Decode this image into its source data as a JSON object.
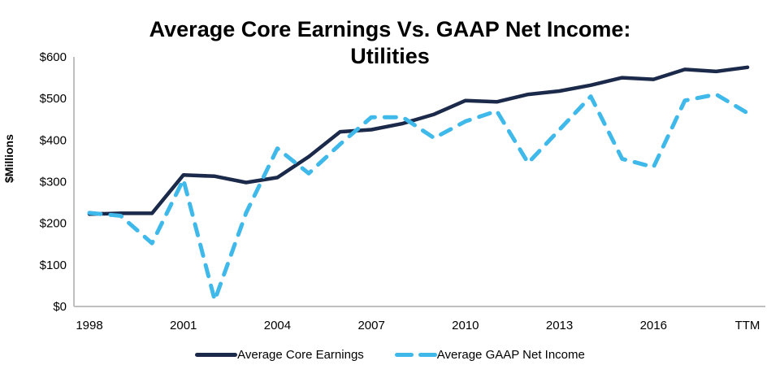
{
  "chart_data": {
    "type": "line",
    "title_line1": "Average Core Earnings Vs. GAAP Net Income:",
    "title_line2": "Utilities",
    "xlabel": "",
    "ylabel": "$Millions",
    "ylim": [
      0,
      600
    ],
    "yticks": [
      0,
      100,
      200,
      300,
      400,
      500,
      600
    ],
    "ytick_labels": [
      "$0",
      "$100",
      "$200",
      "$300",
      "$400",
      "$500",
      "$600"
    ],
    "categories": [
      "1998",
      "1999",
      "2000",
      "2001",
      "2002",
      "2003",
      "2004",
      "2005",
      "2006",
      "2007",
      "2008",
      "2009",
      "2010",
      "2011",
      "2012",
      "2013",
      "2014",
      "2015",
      "2016",
      "2017",
      "2018",
      "TTM"
    ],
    "xtick_labels": [
      "1998",
      "2001",
      "2004",
      "2007",
      "2010",
      "2013",
      "2016",
      "TTM"
    ],
    "grid": false,
    "legend_position": "bottom",
    "series": [
      {
        "name": "Average Core Earnings",
        "color": "#1b2a4a",
        "style": "solid",
        "values": [
          222,
          224,
          224,
          316,
          313,
          298,
          310,
          360,
          420,
          425,
          440,
          462,
          495,
          492,
          510,
          518,
          532,
          550,
          546,
          570,
          565,
          575
        ]
      },
      {
        "name": "Average GAAP Net Income",
        "color": "#3fb8ea",
        "style": "dashed",
        "values": [
          225,
          218,
          152,
          305,
          15,
          225,
          380,
          320,
          390,
          455,
          455,
          405,
          445,
          470,
          345,
          425,
          505,
          355,
          335,
          495,
          510,
          465
        ]
      }
    ]
  }
}
